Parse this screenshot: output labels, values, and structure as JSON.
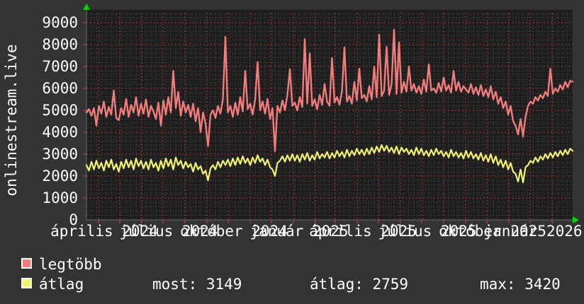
{
  "window": {
    "background": "#333333",
    "plot_background": "#1e1e1e"
  },
  "side_title": "onlinestream.live",
  "legend": {
    "series": [
      {
        "label": "legtöbb",
        "color": "#f07c7c"
      },
      {
        "label": "átlag",
        "color": "#f3f373"
      }
    ],
    "stats": [
      {
        "name": "most",
        "text": "most: 3149"
      },
      {
        "name": "atlag",
        "text": "átlag: 2759"
      },
      {
        "name": "max",
        "text": "max: 3420"
      }
    ]
  },
  "chart_data": {
    "type": "line",
    "title": "onlinestream.live",
    "legend_position": "bottom-left",
    "grid": {
      "major_color": "#a83232",
      "minor_color": "#4f4f4f",
      "axis_color": "#6a6a6a",
      "arrow_color": "#00d400",
      "grid_on": true
    },
    "y_axis": {
      "min": 0,
      "max": 9700,
      "tick_step": 1000,
      "minor_step": 200,
      "ticks": [
        0,
        1000,
        2000,
        3000,
        4000,
        5000,
        6000,
        7000,
        8000,
        9000
      ]
    },
    "x_axis": {
      "start_label": "április 2024",
      "end_label": "január 2026",
      "total_days": 686,
      "minor_tick_days": 7,
      "month_tick_days": [
        17,
        47,
        78,
        108,
        139,
        170,
        200,
        231,
        261,
        292,
        323,
        351,
        382,
        412,
        443,
        473,
        504,
        535,
        565,
        596,
        626,
        657
      ],
      "labels": [
        {
          "day": 17,
          "text": "április 2024"
        },
        {
          "day": 108,
          "text": "július 2024"
        },
        {
          "day": 200,
          "text": "október 2024"
        },
        {
          "day": 292,
          "text": "január 2025"
        },
        {
          "day": 382,
          "text": "április 2025"
        },
        {
          "day": 473,
          "text": "július 2025"
        },
        {
          "day": 565,
          "text": "október 2025"
        },
        {
          "day": 622,
          "text": "január 2026"
        }
      ]
    },
    "stats": {
      "most": 3149,
      "atlag": 2759,
      "max": 3420
    },
    "series": [
      {
        "name": "legtöbb",
        "color": "#f07c7c",
        "stroke_width": 2.4,
        "values": [
          4900,
          5050,
          4750,
          5100,
          4300,
          5200,
          4850,
          5400,
          4700,
          5150,
          4800,
          5900,
          4650,
          4550,
          5100,
          4800,
          5520,
          4700,
          5250,
          4900,
          5600,
          4750,
          5300,
          4850,
          5500,
          4700,
          5200,
          4950,
          4600,
          5350,
          4300,
          5450,
          4800,
          5600,
          4900,
          6800,
          5100,
          5840,
          4750,
          5400,
          4900,
          5250,
          4700,
          5300,
          4500,
          5100,
          4000,
          4900,
          4400,
          3360,
          4800,
          5000,
          4650,
          5200,
          4850,
          5500,
          8350,
          4900,
          5200,
          4700,
          5350,
          4800,
          5600,
          4950,
          6800,
          5050,
          5300,
          4800,
          5500,
          7200,
          5000,
          5400,
          4850,
          5520,
          4600,
          5100,
          3130,
          5200,
          4900,
          5450,
          5000,
          5700,
          6870,
          5200,
          5350,
          5000,
          5600,
          5150,
          8250,
          5300,
          7600,
          5200,
          5500,
          5050,
          5700,
          5250,
          6200,
          5400,
          5200,
          7390,
          5350,
          5600,
          5250,
          5870,
          7870,
          5400,
          5650,
          5300,
          6300,
          5450,
          6900,
          5550,
          5700,
          5400,
          6100,
          5500,
          7000,
          5600,
          8450,
          5650,
          5900,
          7900,
          5700,
          6200,
          8680,
          5750,
          8100,
          5800,
          6300,
          5850,
          7000,
          5900,
          6200,
          5800,
          6100,
          5750,
          6400,
          5850,
          7100,
          5900,
          6000,
          5800,
          6250,
          5850,
          6500,
          5900,
          6150,
          5800,
          6800,
          5900,
          6300,
          5850,
          6100,
          5950,
          5800,
          6200,
          5750,
          6050,
          5700,
          6150,
          5650,
          5950,
          5600,
          6100,
          5500,
          5850,
          5300,
          5600,
          5100,
          5400,
          4800,
          5200,
          4500,
          4300,
          3900,
          4600,
          3800,
          4700,
          5200,
          5400,
          5300,
          5600,
          5450,
          5700,
          5550,
          5850,
          5650,
          6900,
          5750,
          6000,
          5850,
          6150,
          5950,
          6300,
          6050,
          6350,
          6300
        ]
      },
      {
        "name": "átlag",
        "color": "#f3f373",
        "stroke_width": 2.2,
        "values": [
          2500,
          2250,
          2650,
          2300,
          2700,
          2350,
          2600,
          2250,
          2700,
          2400,
          2750,
          2300,
          2550,
          2200,
          2650,
          2350,
          2750,
          2400,
          2700,
          2300,
          2800,
          2450,
          2700,
          2350,
          2650,
          2300,
          2750,
          2400,
          2600,
          2250,
          2700,
          2350,
          2800,
          2450,
          2750,
          2300,
          2850,
          2500,
          2700,
          2350,
          2650,
          2400,
          2550,
          2200,
          2600,
          2300,
          2450,
          2100,
          2250,
          1800,
          2350,
          2500,
          2300,
          2650,
          2400,
          2700,
          2500,
          2750,
          2450,
          2800,
          2500,
          2850,
          2550,
          2900,
          2600,
          2800,
          2500,
          2850,
          2600,
          2950,
          2650,
          2800,
          2500,
          2750,
          2400,
          2300,
          2000,
          2600,
          2700,
          2900,
          2650,
          2950,
          2700,
          3000,
          2700,
          2950,
          2650,
          3000,
          2750,
          3050,
          2700,
          2950,
          2750,
          3100,
          2800,
          3000,
          2850,
          3100,
          2800,
          3050,
          2850,
          3150,
          2900,
          3100,
          2850,
          3200,
          2900,
          3150,
          2950,
          3250,
          3000,
          3200,
          2950,
          3250,
          3000,
          3300,
          3050,
          3350,
          3100,
          3420,
          3150,
          3380,
          3100,
          3300,
          3050,
          3350,
          3000,
          3300,
          3100,
          3250,
          3000,
          3200,
          2950,
          3300,
          3000,
          3250,
          2950,
          3150,
          2900,
          3200,
          2950,
          3250,
          3000,
          3150,
          2900,
          3100,
          2850,
          3200,
          2900,
          3100,
          2850,
          3050,
          2800,
          3150,
          2850,
          3100,
          2800,
          3000,
          2750,
          3050,
          2700,
          2950,
          2650,
          3000,
          2600,
          2900,
          2500,
          2750,
          2400,
          2700,
          2300,
          2600,
          2200,
          2100,
          1750,
          2300,
          1710,
          2400,
          2500,
          2700,
          2600,
          2850,
          2650,
          2900,
          2750,
          3000,
          2800,
          3050,
          2850,
          3100,
          2900,
          3150,
          2950,
          3200,
          3000,
          3250,
          3149
        ]
      }
    ]
  }
}
